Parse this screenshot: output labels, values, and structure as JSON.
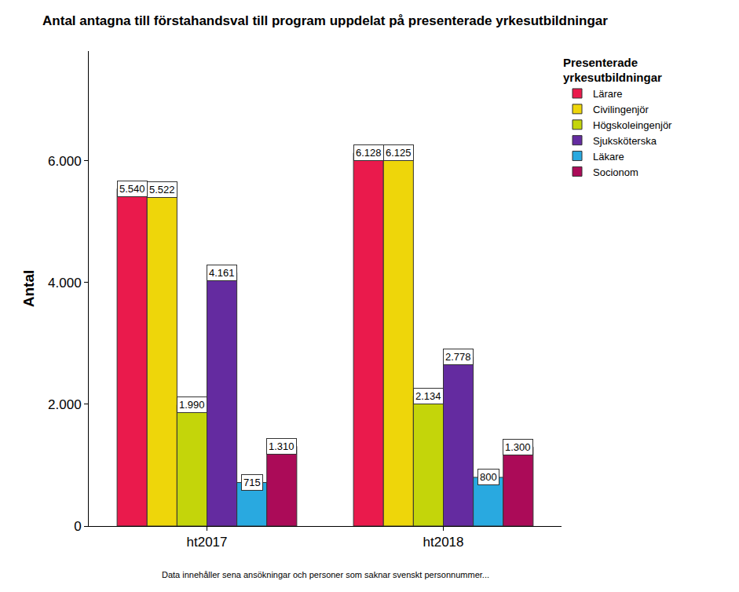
{
  "chart_data": {
    "type": "bar",
    "title": "Antal antagna till förstahandsval till program uppdelat på presenterade yrkesutbildningar",
    "y_label": "Antal",
    "legend_title": "Presenterade yrkesutbildningar",
    "note": "Data innehåller sena ansökningar och personer som saknar svenskt personnummer...",
    "categories": [
      "ht2017",
      "ht2018"
    ],
    "series": [
      {
        "name": "Lärare",
        "color": "#ea1a4c",
        "values": [
          5540,
          6128
        ],
        "value_labels": [
          "5.540",
          "6.128"
        ]
      },
      {
        "name": "Civilingenjör",
        "color": "#eed60a",
        "values": [
          5522,
          6125
        ],
        "value_labels": [
          "5.522",
          "6.125"
        ]
      },
      {
        "name": "Högskoleingenjör",
        "color": "#c4d50a",
        "values": [
          1990,
          2134
        ],
        "value_labels": [
          "1.990",
          "2.134"
        ]
      },
      {
        "name": "Sjuksköterska",
        "color": "#642ba0",
        "values": [
          4161,
          2778
        ],
        "value_labels": [
          "4.161",
          "2.778"
        ]
      },
      {
        "name": "Läkare",
        "color": "#29a9e0",
        "values": [
          715,
          800
        ]
      },
      {
        "name": "Socionom",
        "color": "#ab0b58",
        "values": [
          1310,
          1300
        ],
        "value_labels": [
          "1.310",
          "1.300"
        ]
      }
    ],
    "ylim": [
      0,
      7800
    ],
    "yticks": [
      0,
      {
        "value": 2000,
        "label": "2.000"
      },
      {
        "value": 4000,
        "label": "4.000"
      },
      {
        "value": 6000,
        "label": "6.000"
      }
    ],
    "data_labels": true,
    "legend": "top right",
    "grid": false
  }
}
